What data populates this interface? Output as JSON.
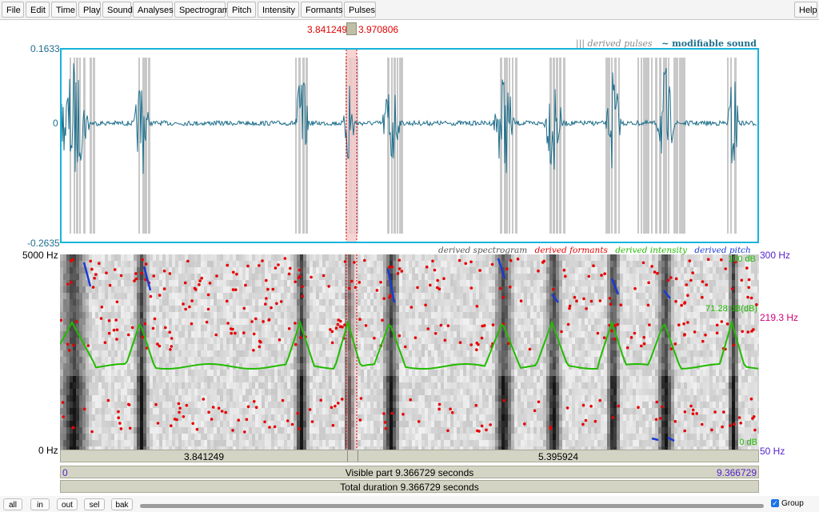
{
  "menu": {
    "items": [
      "File",
      "Edit",
      "Time",
      "Play",
      "Sound",
      "Analyses",
      "Spectrogram",
      "Pitch",
      "Intensity",
      "Formants",
      "Pulses"
    ],
    "help": "Help"
  },
  "selection": {
    "start": "3.841249",
    "end": "3.970806"
  },
  "waveform": {
    "legend_pulses": "||| derived pulses",
    "legend_sound": "~ modifiable sound",
    "y_max": "0.1633",
    "y_zero": "0",
    "y_min": "-0.2635",
    "color": "#1f6f8b",
    "border_color": "#17b3dc"
  },
  "spectrogram": {
    "legend": {
      "spectrogram": "derived spectrogram",
      "formants": "derived formants",
      "intensity": "derived intensity",
      "pitch": "derived pitch"
    },
    "freq_top": "5000 Hz",
    "freq_bottom": "0 Hz",
    "pitch_top": "300 Hz",
    "pitch_mid": "219.3 Hz",
    "pitch_bottom": "50 Hz",
    "intensity_top": "100 dB",
    "intensity_mid": "71.28 dB(dB)",
    "intensity_bottom": "0 dB",
    "colors": {
      "formants": "#e60000",
      "intensity": "#22bb00",
      "pitch": "#1a3ad8",
      "pitch_label": "#5522cc",
      "pitch_mid_label": "#cc0077"
    }
  },
  "time_bars": {
    "left_segment": "3.841249",
    "right_segment": "5.395924",
    "visible_label": "Visible part 9.366729 seconds",
    "visible_start": "0",
    "visible_end": "9.366729",
    "total_label": "Total duration 9.366729 seconds"
  },
  "bottom": {
    "buttons": [
      "all",
      "in",
      "out",
      "sel",
      "bak"
    ],
    "group_label": "Group",
    "group_checked": true
  }
}
